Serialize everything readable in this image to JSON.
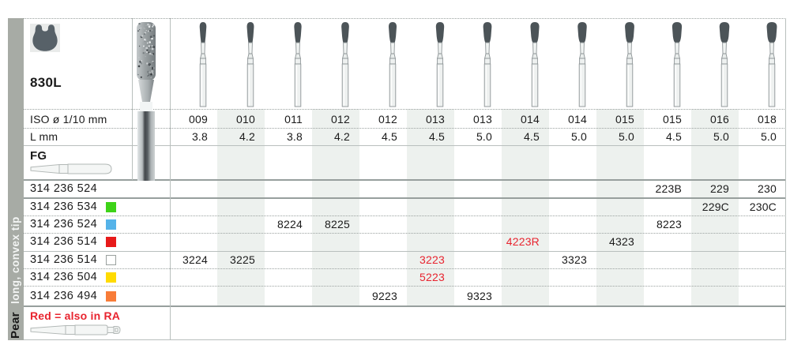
{
  "sidebar": {
    "title": "Pear",
    "subtitle": "long, convex tip",
    "bg": "#a7aba5",
    "title_color": "#171717",
    "subtitle_color": "#f3f5f4"
  },
  "header": {
    "code": "830L",
    "shape_icon": "pear-silhouette-icon",
    "shape_color": "#576168"
  },
  "table": {
    "iso_label": "ISO ø 1/10 mm",
    "length_label": "L mm",
    "shank_label": "FG",
    "note": "Red = also in RA",
    "red_color": "#e8242f",
    "stripe_color": "#edf1ee",
    "text_color": "#1b1b1b",
    "columns": [
      {
        "iso": "009",
        "l": "3.8"
      },
      {
        "iso": "010",
        "l": "4.2"
      },
      {
        "iso": "011",
        "l": "3.8"
      },
      {
        "iso": "012",
        "l": "4.2"
      },
      {
        "iso": "012",
        "l": "4.5"
      },
      {
        "iso": "013",
        "l": "4.5"
      },
      {
        "iso": "013",
        "l": "5.0"
      },
      {
        "iso": "014",
        "l": "4.5"
      },
      {
        "iso": "014",
        "l": "5.0"
      },
      {
        "iso": "015",
        "l": "5.0"
      },
      {
        "iso": "015",
        "l": "4.5"
      },
      {
        "iso": "016",
        "l": "5.0"
      },
      {
        "iso": "018",
        "l": "5.0"
      }
    ],
    "rows": [
      {
        "ref": "314 236 524",
        "chip": null,
        "cells": [
          {
            "col": 10,
            "text": "223B"
          },
          {
            "col": 11,
            "text": "229"
          },
          {
            "col": 12,
            "text": "230"
          }
        ]
      },
      {
        "ref": "314 236 534",
        "chip": "#3ed318",
        "cells": [
          {
            "col": 11,
            "text": "229C"
          },
          {
            "col": 12,
            "text": "230C"
          }
        ]
      },
      {
        "ref": "314 236 524",
        "chip": "#55b3e9",
        "cells": [
          {
            "col": 2,
            "text": "8224"
          },
          {
            "col": 3,
            "text": "8225"
          },
          {
            "col": 10,
            "text": "8223"
          }
        ]
      },
      {
        "ref": "314 236 514",
        "chip": "#e71a1a",
        "cells": [
          {
            "col": 7,
            "text": "4223R",
            "red": true
          },
          {
            "col": 9,
            "text": "4323"
          }
        ]
      },
      {
        "ref": "314 236 514",
        "chip": "#ffffff",
        "cells": [
          {
            "col": 0,
            "text": "3224"
          },
          {
            "col": 1,
            "text": "3225"
          },
          {
            "col": 5,
            "text": "3223",
            "red": true
          },
          {
            "col": 8,
            "text": "3323"
          }
        ]
      },
      {
        "ref": "314 236 504",
        "chip": "#ffdb00",
        "cells": [
          {
            "col": 5,
            "text": "5223",
            "red": true
          }
        ]
      },
      {
        "ref": "314 236 494",
        "chip": "#f87c38",
        "cells": [
          {
            "col": 4,
            "text": "9223"
          },
          {
            "col": 6,
            "text": "9323"
          }
        ]
      }
    ]
  },
  "icons": {
    "shape": "pear-silhouette-icon",
    "fg_shank": "fg-shank-icon",
    "ra_shank": "ra-shank-icon",
    "bur": "diamond-bur-icon"
  }
}
